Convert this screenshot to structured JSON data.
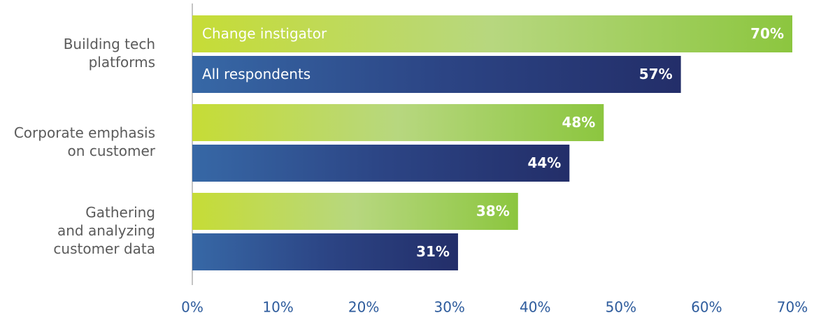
{
  "chart_data": {
    "type": "bar",
    "orientation": "horizontal",
    "categories": [
      [
        "Building tech",
        "platforms"
      ],
      [
        "Corporate emphasis",
        "on customer"
      ],
      [
        "Gathering",
        "and analyzing",
        "customer data"
      ]
    ],
    "series": [
      {
        "name": "Change instigator",
        "color": [
          "#c6dc36",
          "#b7d77f",
          "#8cc63f"
        ],
        "values": [
          70,
          48,
          38
        ],
        "value_labels": [
          "70%",
          "48%",
          "38%"
        ]
      },
      {
        "name": "All respondents",
        "color": [
          "#3768a6",
          "#2c4585",
          "#232e69"
        ],
        "values": [
          57,
          44,
          31
        ],
        "value_labels": [
          "57%",
          "44%",
          "31%"
        ]
      }
    ],
    "xlim": [
      0,
      70
    ],
    "xticks": [
      {
        "value": 0,
        "label": "0%"
      },
      {
        "value": 10,
        "label": "10%"
      },
      {
        "value": 20,
        "label": "20%"
      },
      {
        "value": 30,
        "label": "30%"
      },
      {
        "value": 40,
        "label": "40%"
      },
      {
        "value": 50,
        "label": "50%"
      },
      {
        "value": 60,
        "label": "60%"
      },
      {
        "value": 70,
        "label": "70%"
      }
    ],
    "grid": false
  }
}
